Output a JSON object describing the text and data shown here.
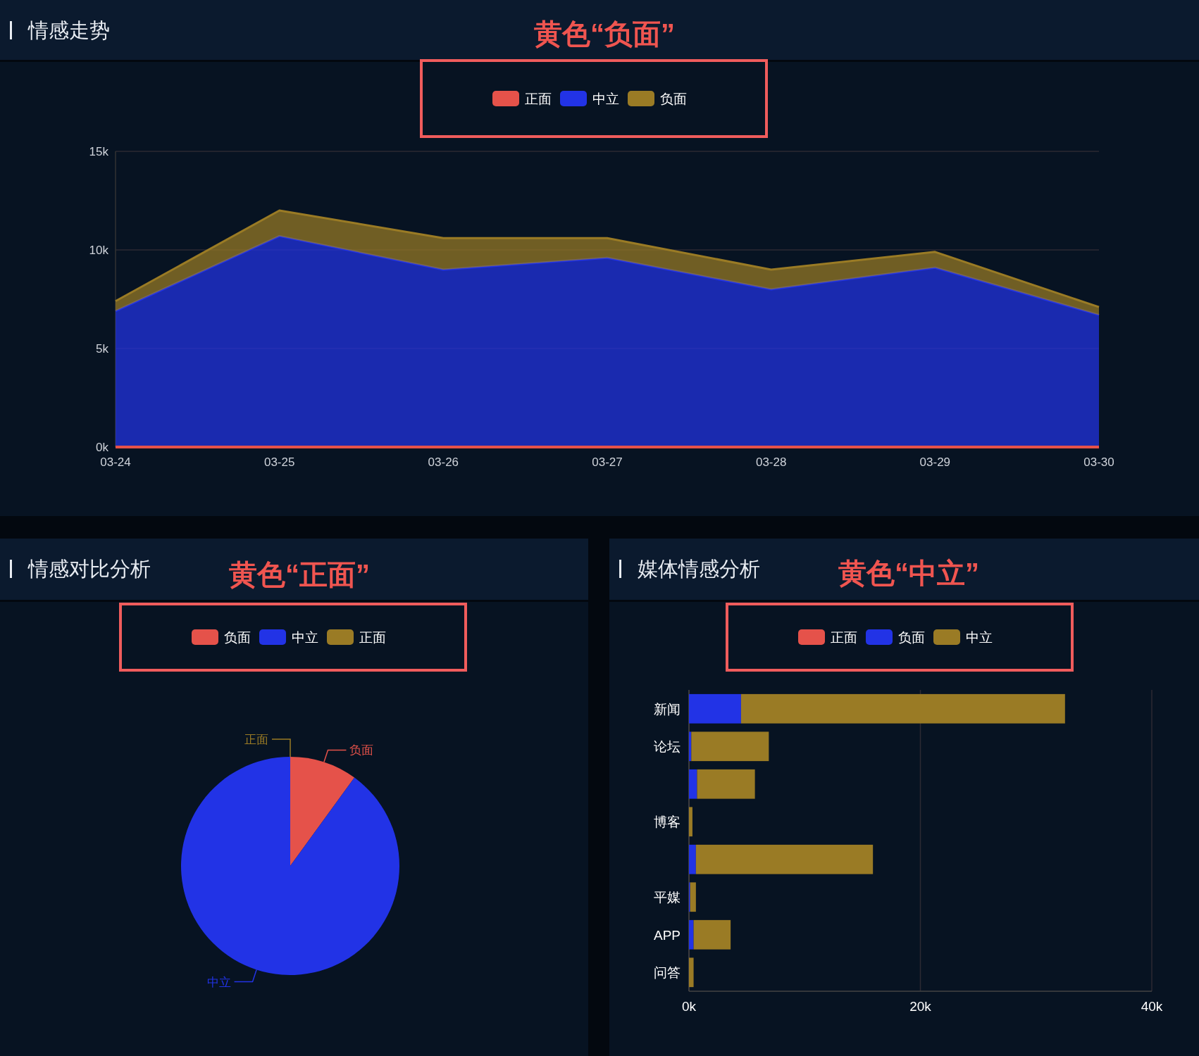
{
  "chart_data": [
    {
      "type": "area",
      "title": "情感走势",
      "annotations": [
        "黄色“负面”"
      ],
      "categories": [
        "03-24",
        "03-25",
        "03-26",
        "03-27",
        "03-28",
        "03-29",
        "03-30"
      ],
      "stacked": true,
      "series": [
        {
          "name": "正面",
          "type": "line",
          "color": "#e5524a",
          "values": [
            0,
            0,
            0,
            0,
            0,
            0,
            0
          ]
        },
        {
          "name": "中立",
          "color": "#2233e6",
          "values": [
            6900,
            10700,
            9000,
            9600,
            8000,
            9100,
            6700
          ]
        },
        {
          "name": "负面",
          "color": "#9a7b25",
          "values": [
            500,
            1300,
            1600,
            1000,
            1000,
            800,
            400
          ]
        }
      ],
      "ylim": [
        0,
        15000
      ],
      "yticks": [
        {
          "value": 0,
          "label": "0k"
        },
        {
          "value": 5000,
          "label": "5k"
        },
        {
          "value": 10000,
          "label": "10k"
        },
        {
          "value": 15000,
          "label": "15k"
        }
      ],
      "grid": "y",
      "legend": "top"
    },
    {
      "type": "pie",
      "title": "情感对比分析",
      "annotations": [
        "黄色“正面”"
      ],
      "categories": [
        "负面",
        "中立",
        "正面"
      ],
      "values": [
        10,
        90,
        0
      ],
      "colors": [
        "#e5524a",
        "#2233e6",
        "#9a7b25"
      ],
      "legend": "top"
    },
    {
      "type": "bar",
      "title": "媒体情感分析",
      "annotations": [
        "黄色“中立”"
      ],
      "orientation": "horizontal",
      "stacked": true,
      "categories": [
        "新闻",
        "论坛",
        null,
        "博客",
        null,
        "平媒",
        "APP",
        "问答"
      ],
      "series": [
        {
          "name": "正面",
          "color": "#e5524a",
          "values": [
            0,
            0,
            0,
            0,
            0,
            0,
            0,
            0
          ]
        },
        {
          "name": "负面",
          "color": "#2233e6",
          "values": [
            4500,
            200,
            700,
            0,
            600,
            100,
            400,
            0
          ]
        },
        {
          "name": "中立",
          "color": "#9a7b25",
          "values": [
            28000,
            6700,
            5000,
            300,
            15300,
            500,
            3200,
            400
          ]
        }
      ],
      "xlim": [
        0,
        40000
      ],
      "xticks": [
        {
          "value": 0,
          "label": "0k"
        },
        {
          "value": 20000,
          "label": "20k"
        },
        {
          "value": 40000,
          "label": "40k"
        }
      ],
      "grid": "x",
      "legend": "top"
    }
  ]
}
